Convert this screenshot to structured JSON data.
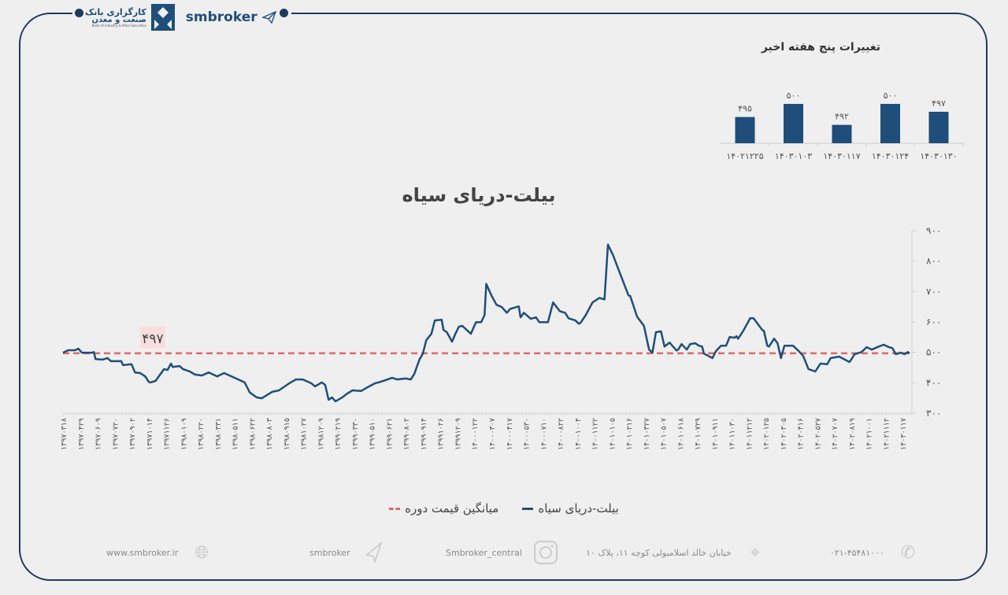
{
  "header": {
    "logo_fa_line1": "کارگزاری بانک",
    "logo_fa_line2": "صنعت و معدن",
    "logo_en": "Bank of Industry & Mine Securities",
    "brand": "smbroker"
  },
  "colors": {
    "frame": "#1f3a5f",
    "series": "#1f4e7a",
    "mean": "#e06666",
    "mean_label_bg": "#f9dede"
  },
  "chart_data": [
    {
      "type": "bar",
      "title": "تغییرات پنج هفته اخیر",
      "categories": [
        "۱۴۰۲۱۲۲۵",
        "۱۴۰۳۰۱۰۳",
        "۱۴۰۳۰۱۱۷",
        "۱۴۰۳۰۱۲۴",
        "۱۴۰۳۰۱۳۰"
      ],
      "values": [
        495,
        500,
        492,
        500,
        497
      ],
      "value_labels": [
        "۴۹۵",
        "۵۰۰",
        "۴۹۲",
        "۵۰۰",
        "۴۹۷"
      ],
      "ylim": [
        485,
        500
      ]
    },
    {
      "type": "line",
      "title": "بیلت-دریای سیاه",
      "ylim": [
        300,
        900
      ],
      "yticks": [
        300,
        400,
        500,
        600,
        700,
        800,
        900
      ],
      "ytick_labels": [
        "۳۰۰",
        "۴۰۰",
        "۵۰۰",
        "۶۰۰",
        "۷۰۰",
        "۸۰۰",
        "۹۰۰"
      ],
      "xtick_labels": [
        "۱۳۹۷۰۳۱۸",
        "۱۳۹۷۰۴۲۹",
        "۱۳۹۷۰۶۰۹",
        "۱۳۹۷۰۷۲۰",
        "۱۳۹۷۰۹۰۲",
        "۱۳۹۷۱۰۱۴",
        "۱۳۹۷۱۱۲۶",
        "۱۳۹۸۰۱۰۹",
        "۱۳۹۸۰۲۲۰",
        "۱۳۹۸۰۳۳۱",
        "۱۳۹۸۰۵۱۱",
        "۱۳۹۸۰۶۲۲",
        "۱۳۹۸۰۸۰۳",
        "۱۳۹۸۰۹۱۵",
        "۱۳۹۸۱۰۲۷",
        "۱۳۹۸۱۲۰۹",
        "۱۳۹۹۰۲۱۹",
        "۱۳۹۹۰۳۳۰",
        "۱۳۹۹۰۵۱۰",
        "۱۳۹۹۰۶۲۱",
        "۱۳۹۹۰۸۰۲",
        "۱۳۹۹۰۹۱۴",
        "۱۳۹۹۱۰۲۶",
        "۱۳۹۹۱۲۰۹",
        "۱۴۰۰۰۱۲۲",
        "۱۴۰۰۰۳۰۷",
        "۱۴۰۰۰۴۱۷",
        "۱۴۰۰۰۵۳۰",
        "۱۴۰۰۰۷۱۰",
        "۱۴۰۰۰۸۲۲",
        "۱۴۰۰۱۰۰۴",
        "۱۴۰۰۱۱۲۲",
        "۱۴۰۱۰۱۰۵",
        "۱۴۰۱۰۲۱۶",
        "۱۴۰۱۰۳۲۷",
        "۱۴۰۱۰۵۰۷",
        "۱۴۰۱۰۶۱۸",
        "۱۴۰۱۰۷۲۹",
        "۱۴۰۱۰۹۱۱",
        "۱۴۰۱۱۰۳۰",
        "۱۴۰۱۱۲۱۲",
        "۱۴۰۲۰۱۲۵",
        "۱۴۰۲۰۳۰۵",
        "۱۴۰۲۰۴۱۶",
        "۱۴۰۲۰۵۲۷",
        "۱۴۰۲۰۷۰۷",
        "۱۴۰۲۰۸۱۹",
        "۱۴۰۲۱۰۰۱",
        "۱۴۰۲۱۱۱۲",
        "۱۴۰۳۰۱۱۷"
      ],
      "series": [
        {
          "name": "بیلت-دریای سیاه",
          "x_tick_index": [
            0,
            0.3,
            0.7,
            0.9,
            1.1,
            1.7,
            1.8,
            1.9,
            2.3,
            2.6,
            2.8,
            3.4,
            3.5,
            4.0,
            4.2,
            4.5,
            4.8,
            5.0,
            5.1,
            5.4,
            5.9,
            6.1,
            6.3,
            6.4,
            6.8,
            7.0,
            7.4,
            7.7,
            8.1,
            8.5,
            9.0,
            9.4,
            10.1,
            10.6,
            10.9,
            11.3,
            11.6,
            12.2,
            12.6,
            13.2,
            13.6,
            14.0,
            14.5,
            14.7,
            15.1,
            15.3,
            15.5,
            15.7,
            15.9,
            16.3,
            16.6,
            16.9,
            17.4,
            17.7,
            18.2,
            18.4,
            18.8,
            19.2,
            19.5,
            20.0,
            20.3,
            20.5,
            20.8,
            21.0,
            21.2,
            21.5,
            21.7,
            22.1,
            22.2,
            22.4,
            22.7,
            22.9,
            23.1,
            23.3,
            23.8,
            24.1,
            24.4,
            24.6,
            24.7,
            25.0,
            25.3,
            25.6,
            25.9,
            26.1,
            26.6,
            26.7,
            26.9,
            27.3,
            27.6,
            27.8,
            28.3,
            28.6,
            29.0,
            29.3,
            29.5,
            29.9,
            30.1,
            30.2,
            30.5,
            30.9,
            31.3,
            31.6,
            31.8,
            32.1,
            32.5,
            33.0,
            33.1,
            33.5,
            33.9,
            34.2,
            34.4,
            34.6,
            34.9,
            35.1,
            35.4,
            35.8,
            35.9,
            36.1,
            36.4,
            36.6,
            36.9,
            37.1,
            37.3,
            37.4,
            37.9,
            38.1,
            38.4,
            38.7,
            38.9,
            39.2,
            39.3,
            39.4,
            39.7,
            40.1,
            40.3,
            40.8,
            40.9,
            41.1,
            41.2,
            41.5,
            41.7,
            41.9,
            42.1,
            42.6,
            42.9,
            43.2,
            43.5,
            43.9,
            44.2,
            44.6,
            44.8,
            45.3,
            45.9,
            46.2,
            46.6,
            46.9,
            47.2,
            47.6,
            47.9,
            48.2,
            48.4,
            48.6,
            48.9,
            49.1,
            49.3,
            49.4
          ],
          "values": [
            499,
            507,
            507,
            512,
            499,
            499,
            501,
            478,
            476,
            481,
            471,
            471,
            458,
            461,
            434,
            432,
            421,
            403,
            401,
            406,
            445,
            442,
            463,
            452,
            455,
            445,
            437,
            427,
            424,
            434,
            421,
            432,
            414,
            401,
            368,
            352,
            349,
            370,
            375,
            398,
            411,
            411,
            398,
            388,
            401,
            393,
            344,
            352,
            339,
            352,
            365,
            375,
            373,
            383,
            398,
            401,
            408,
            416,
            411,
            414,
            411,
            429,
            476,
            496,
            540,
            561,
            605,
            607,
            574,
            566,
            535,
            561,
            584,
            587,
            561,
            599,
            599,
            622,
            725,
            687,
            656,
            649,
            630,
            643,
            651,
            615,
            630,
            610,
            615,
            599,
            599,
            664,
            635,
            630,
            612,
            605,
            594,
            597,
            622,
            664,
            679,
            674,
            854,
            819,
            760,
            687,
            685,
            617,
            587,
            509,
            499,
            566,
            569,
            519,
            532,
            506,
            509,
            527,
            509,
            527,
            530,
            522,
            519,
            496,
            481,
            504,
            522,
            522,
            550,
            548,
            553,
            545,
            571,
            612,
            612,
            574,
            571,
            522,
            519,
            545,
            530,
            481,
            522,
            522,
            506,
            488,
            445,
            437,
            463,
            461,
            481,
            486,
            468,
            494,
            501,
            517,
            509,
            519,
            525,
            517,
            514,
            494,
            499,
            494,
            501,
            496
          ]
        },
        {
          "name": "میانگین قیمت دوره",
          "value": 497,
          "label": "۴۹۷",
          "style": "dashed"
        }
      ],
      "legend_position": "bottom"
    }
  ],
  "footer": {
    "website": "www.smbroker.ir",
    "telegram": "smbroker",
    "instagram": "Smbroker_central",
    "address": "خیابان خالد اسلامبولی کوچه ۱۱، پلاک ۱۰",
    "phone": "۰۲۱-۴۵۴۸۱۰۰۰"
  }
}
